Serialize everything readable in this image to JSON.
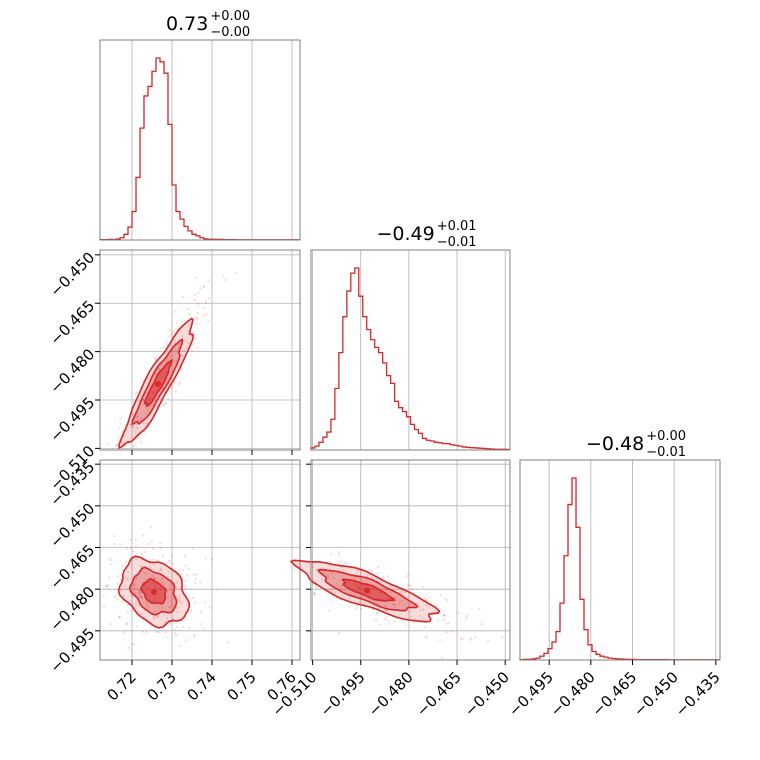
{
  "chart_data": {
    "type": "corner",
    "parameters": [
      {
        "title_center": "0.73",
        "title_plus": "+0.00",
        "title_minus": "−0.00",
        "range": [
          0.712,
          0.762
        ],
        "ticks": [
          0.72,
          0.73,
          0.74,
          0.75,
          0.76
        ],
        "tick_labels": [
          "0.72",
          "0.73",
          "0.74",
          "0.75",
          "0.76"
        ]
      },
      {
        "title_center": "−0.49",
        "title_plus": "+0.01",
        "title_minus": "−0.01",
        "range": [
          -0.5105,
          -0.4485
        ],
        "ticks": [
          -0.51,
          -0.495,
          -0.48,
          -0.465,
          -0.45
        ],
        "tick_labels": [
          "−0.510",
          "−0.495",
          "−0.480",
          "−0.465",
          "−0.450"
        ]
      },
      {
        "title_center": "−0.48",
        "title_plus": "+0.00",
        "title_minus": "−0.01",
        "range": [
          -0.5055,
          -0.4335
        ],
        "ticks": [
          -0.495,
          -0.48,
          -0.465,
          -0.45,
          -0.435
        ],
        "tick_labels": [
          "−0.495",
          "−0.480",
          "−0.465",
          "−0.450",
          "−0.435"
        ]
      }
    ],
    "row_axis_labels": {
      "row1": {
        "ticks": [
          -0.45,
          -0.465,
          -0.48,
          -0.495,
          -0.51
        ],
        "tick_labels": [
          "−0.450",
          "−0.465",
          "−0.480",
          "−0.495",
          "−0.510"
        ]
      },
      "row2": {
        "ticks": [
          -0.435,
          -0.45,
          -0.465,
          -0.48,
          -0.495
        ],
        "tick_labels": [
          "−0.435",
          "−0.450",
          "−0.465",
          "−0.480",
          "−0.495"
        ]
      }
    },
    "histograms": [
      {
        "param": 0,
        "bin_start": 0.712,
        "bin_width": 0.001,
        "counts": [
          2,
          2,
          3,
          2,
          5,
          12,
          30,
          68,
          150,
          330,
          590,
          760,
          810,
          890,
          960,
          940,
          880,
          610,
          290,
          150,
          110,
          72,
          48,
          30,
          22,
          12,
          6,
          4,
          4,
          3,
          3,
          2,
          2,
          2,
          1,
          1,
          1,
          1,
          1,
          1,
          1,
          1,
          1,
          1,
          1,
          1,
          1,
          1,
          1,
          1
        ]
      },
      {
        "param": 1,
        "bin_start": -0.5105,
        "bin_width": 0.00124,
        "counts": [
          8,
          15,
          30,
          50,
          70,
          120,
          240,
          380,
          520,
          620,
          690,
          710,
          600,
          520,
          470,
          430,
          400,
          380,
          340,
          290,
          260,
          190,
          165,
          150,
          130,
          100,
          80,
          65,
          45,
          38,
          35,
          30,
          28,
          25,
          25,
          20,
          18,
          15,
          12,
          10,
          9,
          8,
          7,
          6,
          5,
          4,
          3,
          3,
          3,
          2
        ]
      },
      {
        "param": 2,
        "bin_start": -0.5055,
        "bin_width": 0.00144,
        "counts": [
          2,
          3,
          4,
          6,
          10,
          20,
          35,
          60,
          95,
          150,
          300,
          550,
          820,
          960,
          700,
          320,
          160,
          80,
          45,
          30,
          20,
          15,
          10,
          8,
          6,
          5,
          4,
          3,
          3,
          2,
          2,
          2,
          2,
          2,
          2,
          2,
          2,
          1,
          1,
          1,
          1,
          1,
          1,
          1,
          1,
          1,
          1,
          1,
          1,
          1
        ]
      }
    ],
    "contour_panels": [
      {
        "x_param": 0,
        "y_param": 1,
        "center": [
          0.7265,
          -0.49
        ],
        "sigma": [
          0.0037,
          0.008
        ],
        "rho": 0.92
      },
      {
        "x_param": 0,
        "y_param": 2,
        "center": [
          0.7255,
          -0.481
        ],
        "sigma": [
          0.0035,
          0.005
        ],
        "rho": -0.3
      },
      {
        "x_param": 1,
        "y_param": 2,
        "center": [
          -0.493,
          -0.4805
        ],
        "sigma": [
          0.009,
          0.0045
        ],
        "rho": -0.82
      }
    ],
    "colors": {
      "series": "#d62728",
      "frame": "#808080",
      "grid": "#b0b0b0"
    },
    "grid": true
  }
}
